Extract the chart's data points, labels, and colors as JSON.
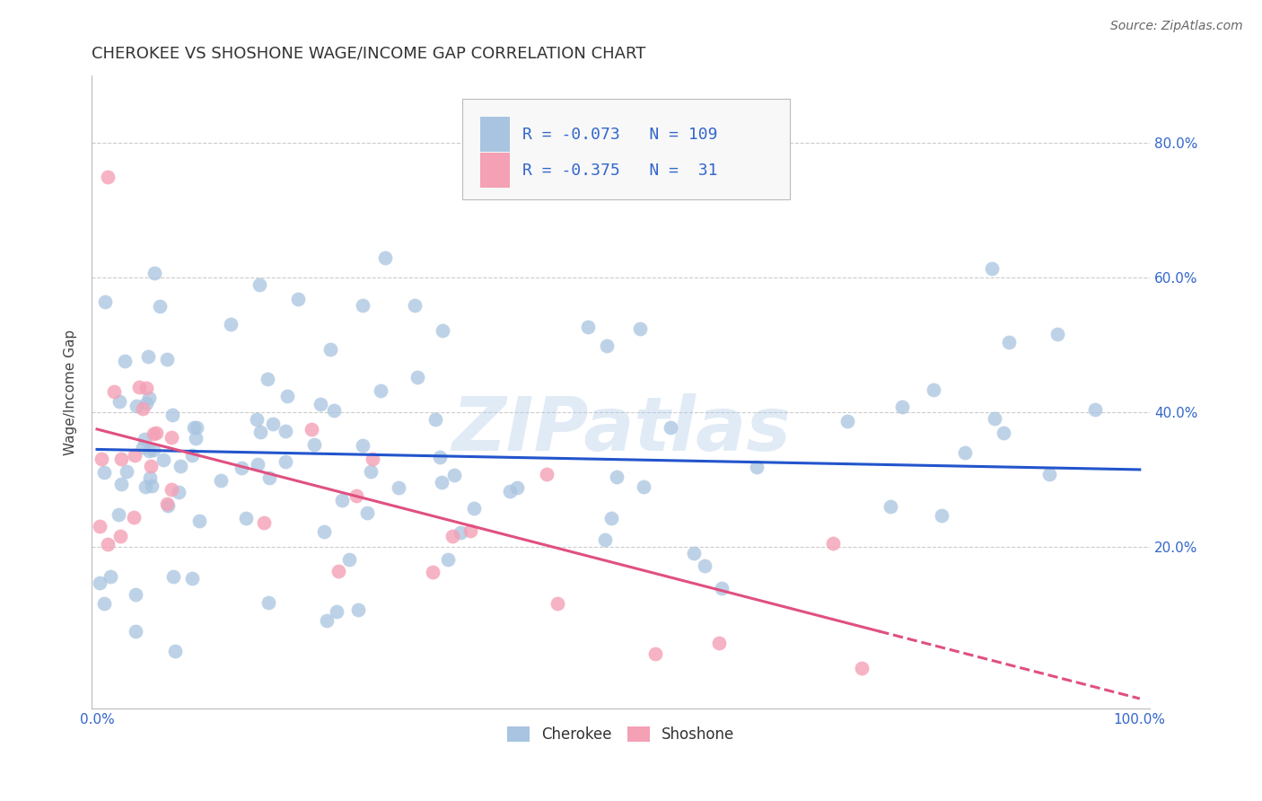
{
  "title": "CHEROKEE VS SHOSHONE WAGE/INCOME GAP CORRELATION CHART",
  "source": "Source: ZipAtlas.com",
  "ylabel": "Wage/Income Gap",
  "watermark": "ZIPatlas",
  "cherokee_color": "#a8c4e0",
  "shoshone_color": "#f4a0b5",
  "cherokee_line_color": "#2255cc",
  "shoshone_line_color": "#e05080",
  "legend_text_color": "#3366cc",
  "background_color": "#ffffff",
  "grid_color": "#cccccc",
  "title_fontsize": 13,
  "axis_label_fontsize": 11,
  "tick_fontsize": 11,
  "legend_fontsize": 13,
  "source_fontsize": 10,
  "cherokee_seed": 7,
  "shoshone_seed": 3
}
